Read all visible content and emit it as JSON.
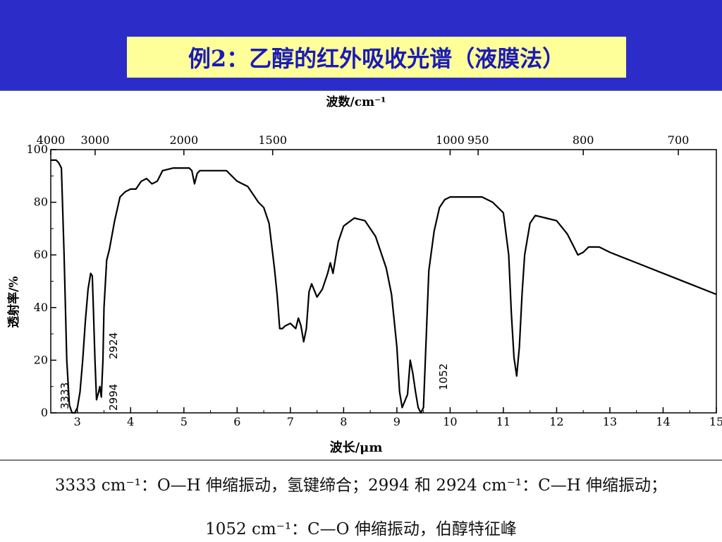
{
  "slide": {
    "title": "例2：乙醇的红外吸收光谱（液膜法）",
    "notes": [
      "3333 cm⁻¹：O—H 伸缩振动，氢键缔合；2994 和 2924 cm⁻¹：C—H 伸缩振动；",
      "1052 cm⁻¹：C—O 伸缩振动，伯醇特征峰"
    ]
  },
  "colors": {
    "header_bg": "#2c2dc8",
    "title_bg": "#ffff99",
    "title_text": "#1a1ab8",
    "spectrum": "#000000"
  },
  "chart_data": {
    "type": "line",
    "title": "",
    "top_axis_label": "波数/cm⁻¹",
    "top_ticks": [
      {
        "label": "4000",
        "um": 2.5
      },
      {
        "label": "3000",
        "um": 3.333
      },
      {
        "label": "2000",
        "um": 5.0
      },
      {
        "label": "1500",
        "um": 6.667
      },
      {
        "label": "1000",
        "um": 10.0
      },
      {
        "label": "950",
        "um": 10.526
      },
      {
        "label": "800",
        "um": 12.5
      },
      {
        "label": "700",
        "um": 14.286
      }
    ],
    "xlabel": "波长/μm",
    "ylabel": "透射率/%",
    "xlim": [
      2.5,
      15
    ],
    "ylim": [
      0,
      100
    ],
    "x_ticks": [
      "3",
      "4",
      "5",
      "6",
      "7",
      "8",
      "9",
      "10",
      "11",
      "12",
      "13",
      "14",
      "15"
    ],
    "y_ticks": [
      "0",
      "20",
      "40",
      "60",
      "80",
      "100"
    ],
    "grid": false,
    "series": [
      {
        "x": [
          2.5,
          2.6,
          2.65,
          2.7,
          2.75,
          2.8,
          2.85,
          2.9,
          2.95,
          3.0,
          3.05,
          3.1,
          3.15,
          3.2,
          3.25,
          3.28,
          3.3,
          3.33,
          3.36,
          3.4,
          3.42,
          3.45,
          3.48,
          3.5,
          3.55,
          3.6,
          3.7,
          3.8,
          3.9,
          4.0,
          4.1,
          4.2,
          4.3,
          4.4,
          4.5,
          4.6,
          4.8,
          5.0,
          5.1,
          5.15,
          5.2,
          5.25,
          5.3,
          5.5,
          5.8,
          6.0,
          6.2,
          6.4,
          6.5,
          6.6,
          6.7,
          6.75,
          6.8,
          6.85,
          6.9,
          7.0,
          7.1,
          7.15,
          7.2,
          7.25,
          7.3,
          7.35,
          7.4,
          7.5,
          7.6,
          7.7,
          7.75,
          7.8,
          7.9,
          8.0,
          8.2,
          8.4,
          8.6,
          8.8,
          8.9,
          9.0,
          9.05,
          9.1,
          9.2,
          9.25,
          9.3,
          9.35,
          9.4,
          9.45,
          9.5,
          9.6,
          9.7,
          9.8,
          9.9,
          10.0,
          10.2,
          10.4,
          10.6,
          10.8,
          11.0,
          11.1,
          11.15,
          11.2,
          11.25,
          11.3,
          11.35,
          11.4,
          11.5,
          11.6,
          11.8,
          12.0,
          12.2,
          12.3,
          12.4,
          12.5,
          12.6,
          12.8,
          13.0,
          13.5,
          14.0,
          14.5,
          15.0
        ],
        "y": [
          96,
          96,
          95,
          93,
          60,
          20,
          3,
          0,
          0,
          2,
          8,
          20,
          35,
          47,
          53,
          52,
          40,
          20,
          5,
          8,
          10,
          6,
          20,
          40,
          58,
          62,
          73,
          82,
          84,
          85,
          85,
          88,
          89,
          87,
          88,
          92,
          93,
          93,
          93,
          92,
          87,
          91,
          92,
          92,
          92,
          88,
          86,
          80,
          78,
          72,
          55,
          45,
          32,
          32,
          33,
          34,
          32,
          36,
          33,
          27,
          32,
          46,
          49,
          44,
          47,
          53,
          57,
          53,
          65,
          71,
          74,
          73,
          67,
          55,
          45,
          25,
          8,
          2,
          7,
          20,
          15,
          8,
          2,
          0,
          2,
          54,
          69,
          78,
          81,
          82,
          82,
          82,
          82,
          80,
          76,
          60,
          38,
          21,
          14,
          25,
          45,
          60,
          72,
          75,
          74,
          73,
          68,
          64,
          60,
          61,
          63,
          63,
          61,
          57,
          53,
          49,
          45
        ]
      }
    ],
    "annotations": [
      "3333",
      "2994",
      "2924",
      "1052"
    ]
  }
}
